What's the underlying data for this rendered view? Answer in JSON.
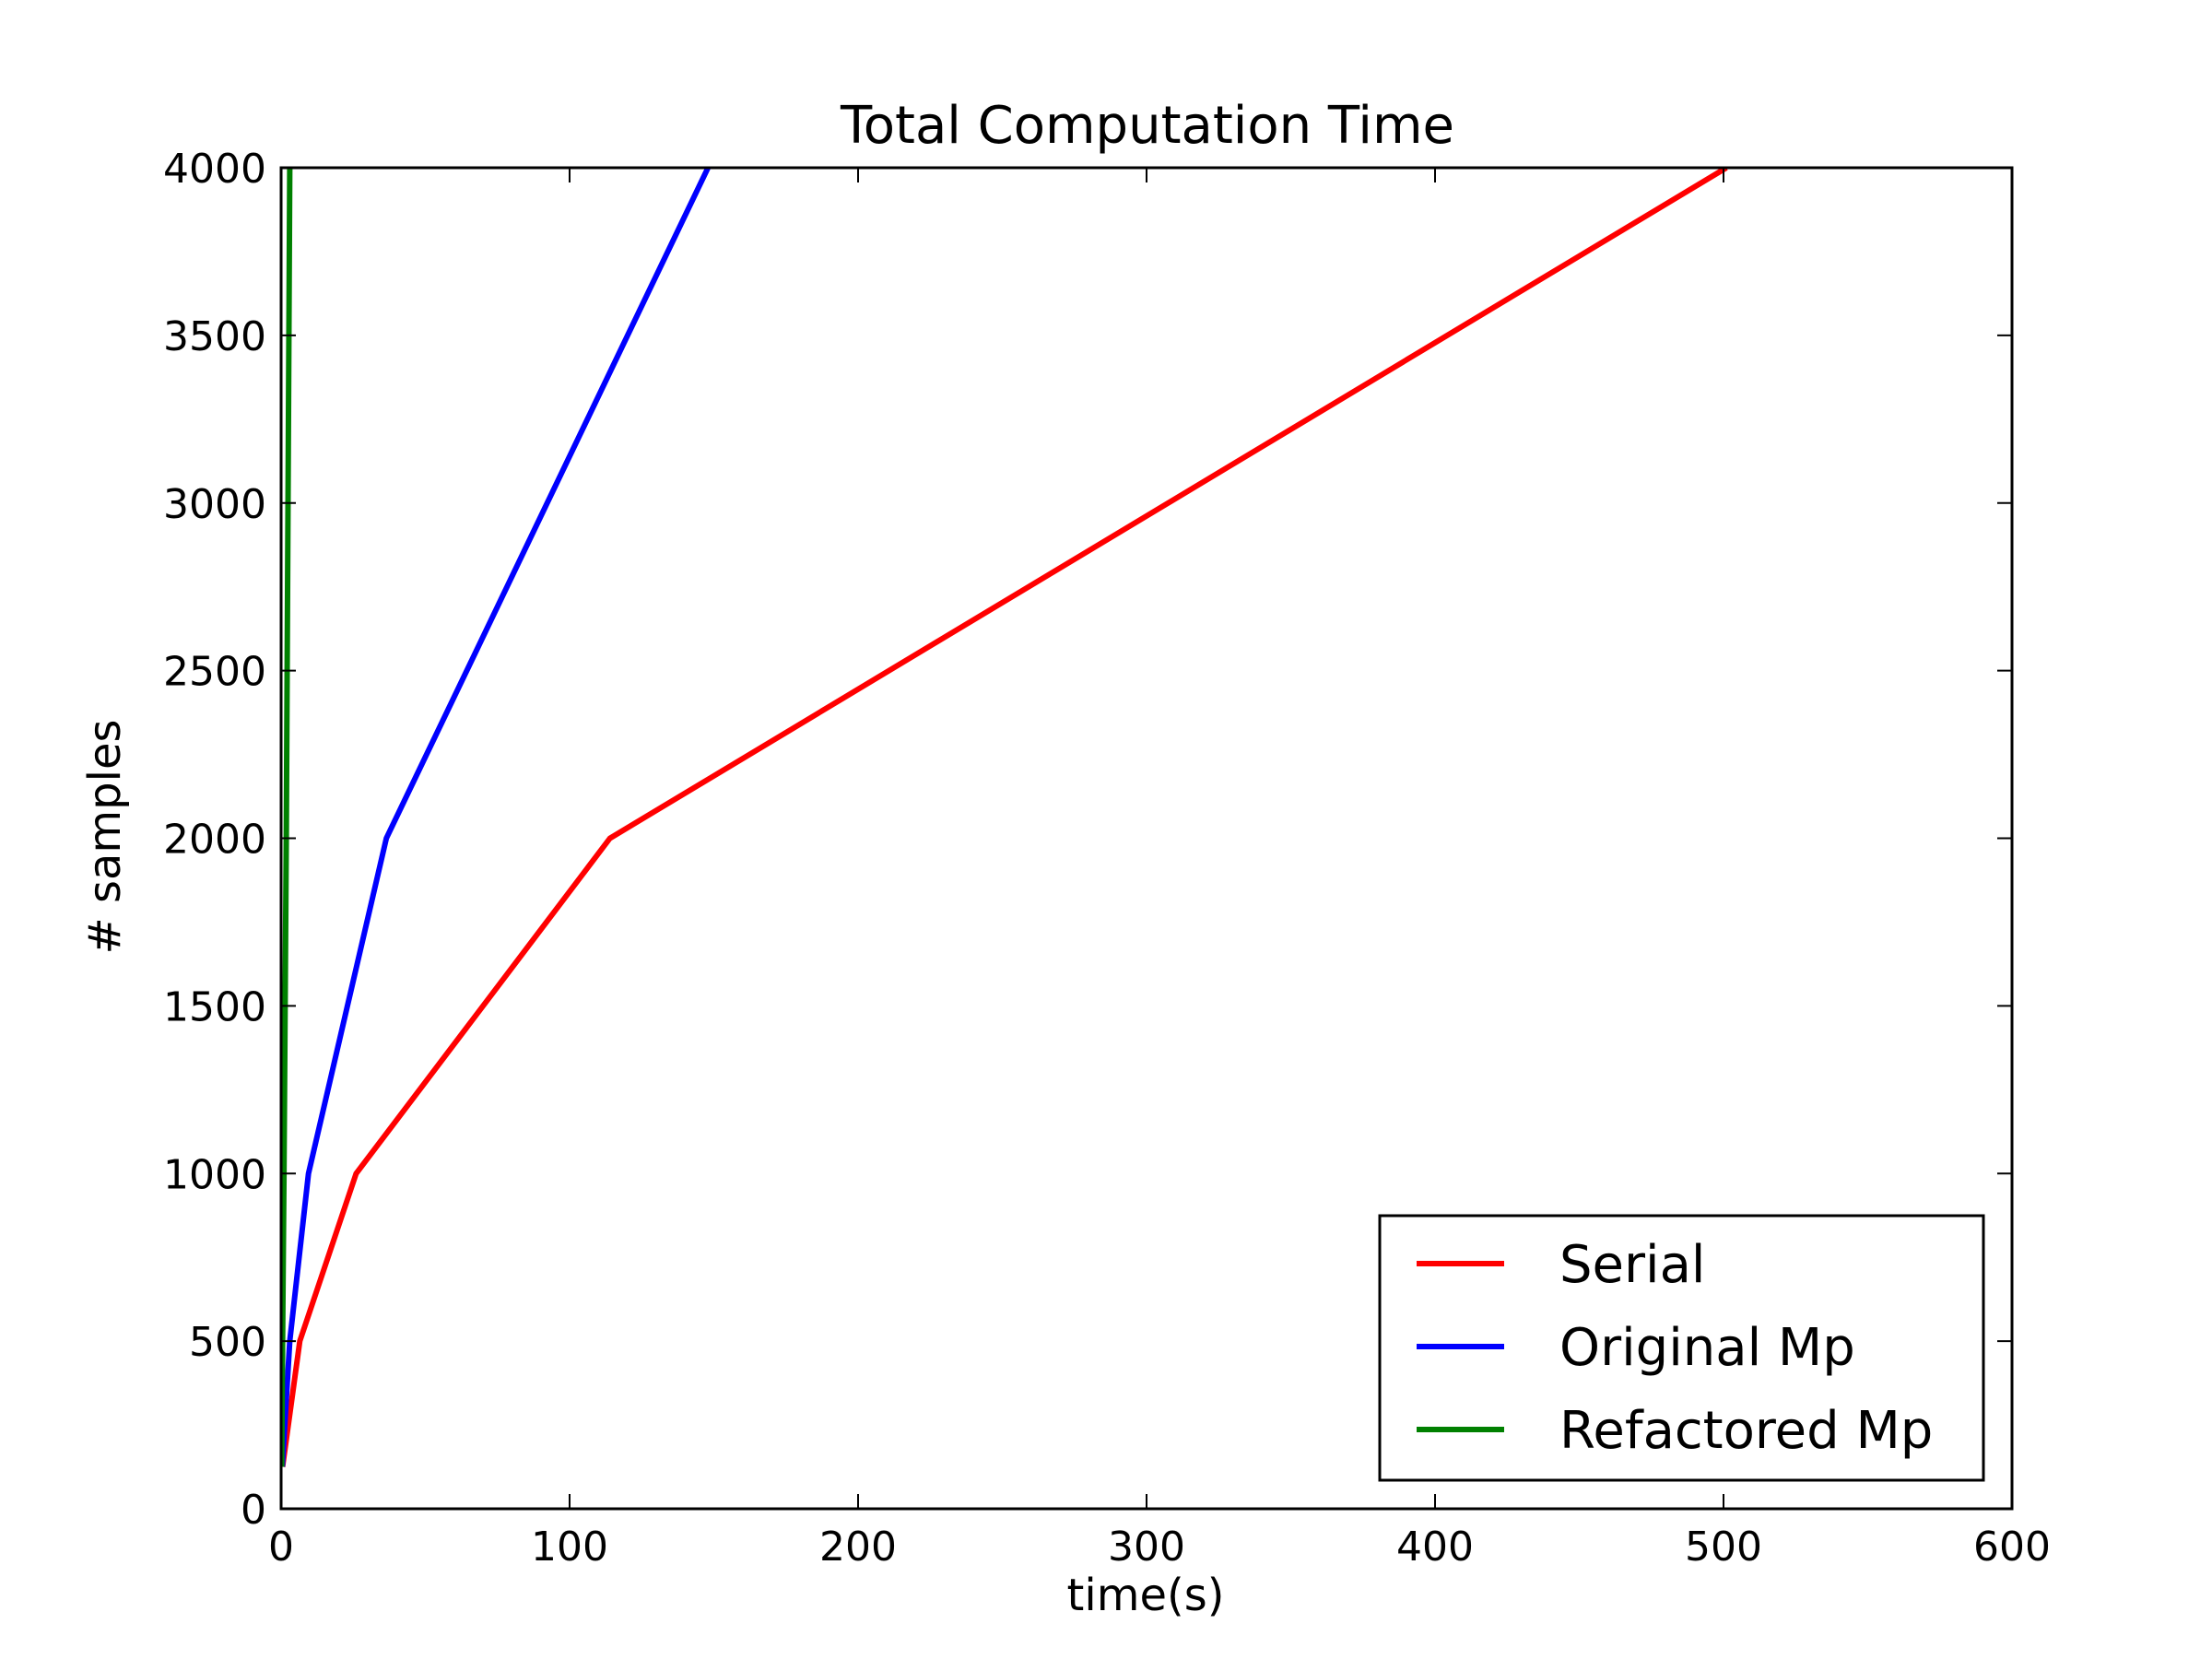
{
  "chart_data": {
    "type": "line",
    "title": "Total Computation Time",
    "xlabel": "time(s)",
    "ylabel": "# samples",
    "xlim": [
      0,
      600
    ],
    "ylim": [
      0,
      4000
    ],
    "xticks": [
      0,
      100,
      200,
      300,
      400,
      500,
      600
    ],
    "yticks": [
      0,
      500,
      1000,
      1500,
      2000,
      2500,
      3000,
      3500,
      4000
    ],
    "grid": false,
    "legend_position": "lower-right",
    "series": [
      {
        "name": "Serial",
        "color": "#ff0000",
        "x": [
          0.5,
          6.5,
          26,
          114,
          501
        ],
        "y": [
          125,
          500,
          1000,
          2000,
          4000
        ]
      },
      {
        "name": "Original Mp",
        "color": "#0000ff",
        "x": [
          0.4,
          3,
          9.5,
          36.5,
          148
        ],
        "y": [
          125,
          500,
          1000,
          2000,
          4000
        ]
      },
      {
        "name": "Refactored Mp",
        "color": "#008000",
        "x": [
          0.2,
          0.5,
          1.0,
          1.8,
          3.0
        ],
        "y": [
          125,
          500,
          1000,
          2000,
          4000
        ]
      }
    ]
  }
}
